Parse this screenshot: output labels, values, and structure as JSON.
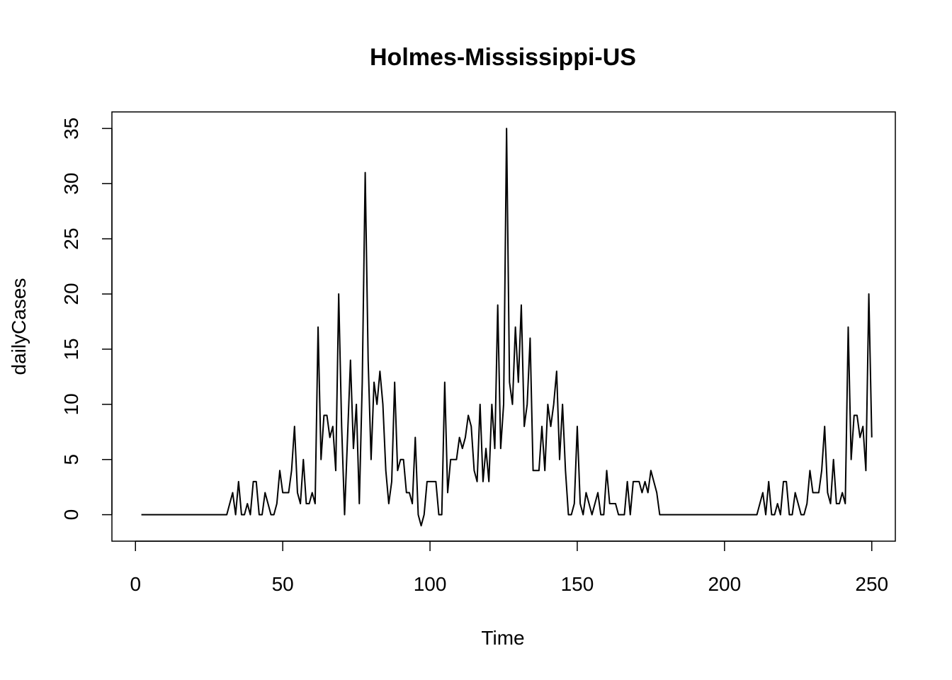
{
  "chart_data": {
    "type": "line",
    "title": "Holmes-Mississippi-US",
    "xlabel": "Time",
    "ylabel": "dailyCases",
    "xlim": [
      -8,
      258
    ],
    "ylim": [
      -2.4,
      36.5
    ],
    "xticks": [
      0,
      50,
      100,
      150,
      200,
      250
    ],
    "yticks": [
      0,
      5,
      10,
      15,
      20,
      25,
      30,
      35
    ],
    "grid": false,
    "series": [
      {
        "x_start": 2,
        "values": [
          0,
          0,
          0,
          0,
          0,
          0,
          0,
          0,
          0,
          0,
          0,
          0,
          0,
          0,
          0,
          0,
          0,
          0,
          0,
          0,
          0,
          0,
          0,
          0,
          0,
          0,
          0,
          0,
          0,
          0,
          1,
          2,
          0,
          3,
          0,
          0,
          1,
          0,
          3,
          3,
          0,
          0,
          2,
          1,
          0,
          0,
          1,
          4,
          2,
          2,
          2,
          4,
          8,
          2,
          1,
          5,
          1,
          1,
          2,
          1,
          17,
          5,
          9,
          9,
          7,
          8,
          4,
          20,
          8,
          0,
          7,
          14,
          6,
          10,
          1,
          12,
          31,
          14,
          5,
          12,
          10,
          13,
          10,
          4,
          1,
          3,
          12,
          4,
          5,
          5,
          2,
          2,
          1,
          7,
          0,
          -1,
          0,
          3,
          3,
          3,
          3,
          0,
          0,
          12,
          2,
          5,
          5,
          5,
          7,
          6,
          7,
          9,
          8,
          4,
          3,
          10,
          3,
          6,
          3,
          10,
          6,
          19,
          6,
          10,
          35,
          12,
          10,
          17,
          12,
          19,
          8,
          10,
          16,
          4,
          4,
          4,
          8,
          4,
          10,
          8,
          10,
          13,
          5,
          10,
          4,
          0,
          0,
          1,
          8,
          1,
          0,
          2,
          1,
          0,
          1,
          2,
          0,
          0,
          4,
          1,
          1,
          1,
          0,
          0,
          0,
          3,
          0,
          3,
          3,
          3,
          2,
          3,
          2,
          4,
          3,
          2,
          0,
          0,
          0,
          0,
          0,
          0,
          0,
          0,
          0,
          0,
          0,
          0,
          0,
          0,
          0,
          0,
          0,
          0,
          0,
          0,
          0,
          0,
          0,
          0,
          0,
          0,
          0,
          0,
          0,
          0,
          0,
          0,
          0,
          0,
          1,
          2,
          0,
          3,
          0,
          0,
          1,
          0,
          3,
          3,
          0,
          0,
          2,
          1,
          0,
          0,
          1,
          4,
          2,
          2,
          2,
          4,
          8,
          2,
          1,
          5,
          1,
          1,
          2,
          1,
          17,
          5,
          9,
          9,
          7,
          8,
          4,
          20,
          7
        ]
      }
    ]
  }
}
